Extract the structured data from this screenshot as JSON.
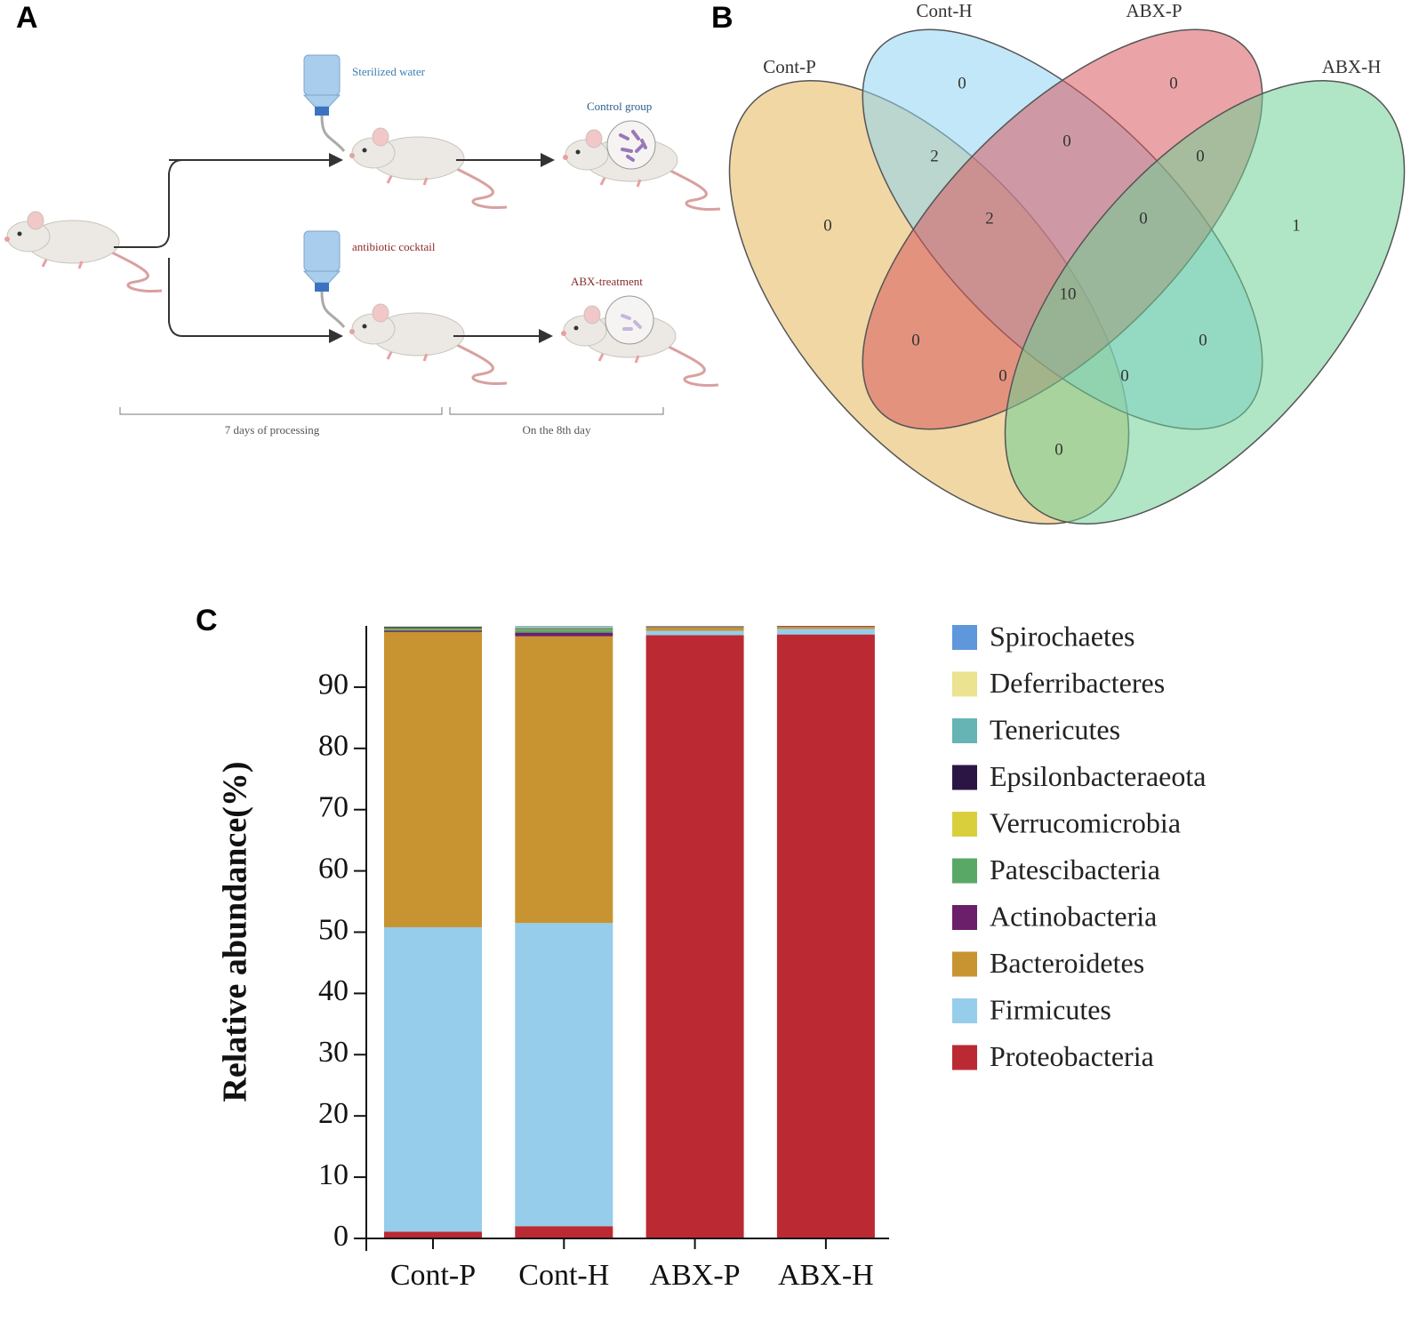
{
  "panel_labels": [
    "A",
    "B",
    "C"
  ],
  "diagram": {
    "labels": [
      "Sterilized water",
      "Control group",
      "antibiotic cocktail",
      "ABX-treatment"
    ],
    "timeline": [
      "7 days of processing",
      "On the 8th day"
    ]
  },
  "venn": {
    "sets": [
      "Cont-P",
      "Cont-H",
      "ABX-P",
      "ABX-H"
    ],
    "counts": [
      0,
      0,
      0,
      1,
      2,
      0,
      0,
      2,
      0,
      10,
      0,
      0,
      0,
      0,
      0
    ]
  },
  "chart_data": {
    "type": "stacked_bar",
    "y_label": "Relative abundance(%)",
    "categories": [
      "Cont-P",
      "Cont-H",
      "ABX-P",
      "ABX-H"
    ],
    "ylim": [
      0,
      100
    ],
    "yticks": [
      0,
      10,
      20,
      30,
      40,
      50,
      60,
      70,
      80,
      90
    ],
    "series": [
      {
        "name": "Proteobacteria",
        "color": "#bb2a33",
        "values": [
          1.1,
          2.0,
          98.5,
          98.6
        ]
      },
      {
        "name": "Firmicutes",
        "color": "#95cdea",
        "values": [
          49.7,
          49.5,
          0.7,
          0.9
        ]
      },
      {
        "name": "Bacteroidetes",
        "color": "#c89331",
        "values": [
          48.2,
          46.8,
          0.6,
          0.4
        ]
      },
      {
        "name": "Actinobacteria",
        "color": "#6b1f6b",
        "values": [
          0.2,
          0.6,
          0.1,
          0.1
        ]
      },
      {
        "name": "Patescibacteria",
        "color": "#5aa866",
        "values": [
          0.3,
          0.5,
          0,
          0
        ]
      },
      {
        "name": "Verrucomicrobia",
        "color": "#d9cf3d",
        "values": [
          0.1,
          0.1,
          0,
          0
        ]
      },
      {
        "name": "Epsilonbacteraeota",
        "color": "#2b1545",
        "values": [
          0.2,
          0.1,
          0,
          0
        ]
      },
      {
        "name": "Tenericutes",
        "color": "#66b4b4",
        "values": [
          0.1,
          0.2,
          0.1,
          0
        ]
      },
      {
        "name": "Deferribacteres",
        "color": "#ebe38f",
        "values": [
          0.1,
          0.1,
          0,
          0
        ]
      },
      {
        "name": "Spirochaetes",
        "color": "#5f97dc",
        "values": [
          0,
          0.1,
          0,
          0
        ]
      }
    ]
  }
}
